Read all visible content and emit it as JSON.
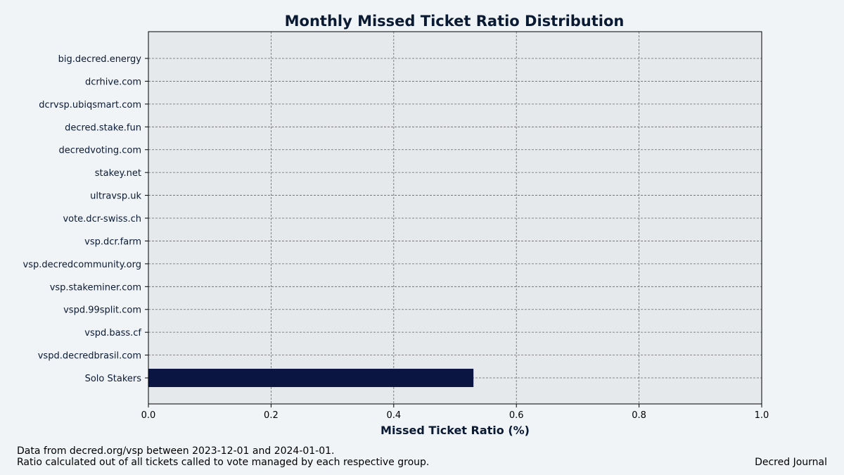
{
  "chart_data": {
    "type": "bar",
    "orientation": "horizontal",
    "title": "Monthly Missed Ticket Ratio Distribution",
    "xlabel": "Missed Ticket Ratio (%)",
    "ylabel": "",
    "categories": [
      "big.decred.energy",
      "dcrhive.com",
      "dcrvsp.ubiqsmart.com",
      "decred.stake.fun",
      "decredvoting.com",
      "stakey.net",
      "ultravsp.uk",
      "vote.dcr-swiss.ch",
      "vsp.dcr.farm",
      "vsp.decredcommunity.org",
      "vsp.stakeminer.com",
      "vspd.99split.com",
      "vspd.bass.cf",
      "vspd.decredbrasil.com",
      "Solo Stakers"
    ],
    "values": [
      0,
      0,
      0,
      0,
      0,
      0,
      0,
      0,
      0,
      0,
      0,
      0,
      0,
      0,
      0.53
    ],
    "xlim": [
      0.0,
      1.0
    ],
    "xticks": [
      "0.0",
      "0.2",
      "0.4",
      "0.6",
      "0.8",
      "1.0"
    ],
    "grid": true,
    "legend": "none",
    "colors": {
      "bar": "#0a1541",
      "plot_background": "#e5e9ec",
      "figure_background": "#f1f4f6",
      "grid": "#666666",
      "text": "#0a1a33"
    }
  },
  "footer": {
    "line1": "Data from decred.org/vsp between 2023-12-01 and 2024-01-01.",
    "line2": "Ratio calculated out of all tickets called to vote managed by each respective group.",
    "credit": "Decred Journal"
  }
}
